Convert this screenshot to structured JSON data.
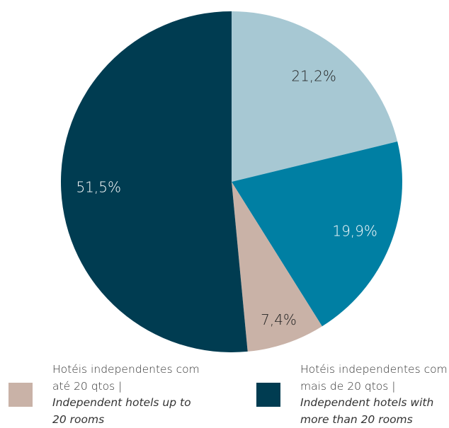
{
  "chart_data": {
    "type": "pie",
    "categories": [
      null,
      null,
      "Hotéis independentes com até 20 qtos |",
      "Hotéis independentes com mais de 20 qtos |"
    ],
    "categories_en": [
      null,
      null,
      "Independent hotels up to 20 rooms",
      "Independent hotels with more than 20 rooms"
    ],
    "values": [
      21.2,
      19.9,
      7.4,
      51.5
    ],
    "value_labels": [
      "21,2%",
      "19,9%",
      "7,4%",
      "51,5%"
    ],
    "colors": [
      "#a7c8d3",
      "#007fa3",
      "#c9b2a7",
      "#003c51"
    ]
  }
}
